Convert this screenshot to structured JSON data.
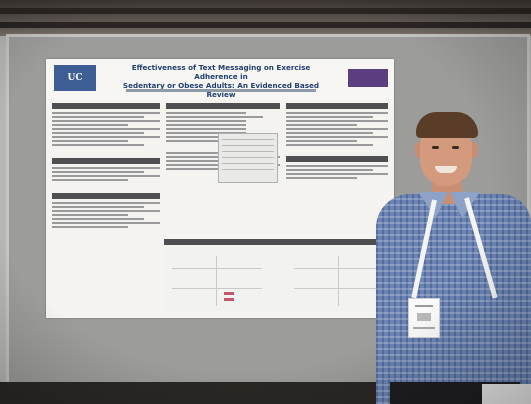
{
  "photo": {
    "subject": "person-presenting-poster",
    "colors": {
      "board": "#9c9d9a",
      "poster": "#f4f3ef",
      "poster_title": "#1f3f73",
      "shirt": "#6b84b3",
      "section_header": "#4f4f52"
    }
  },
  "poster": {
    "logo_text": "UC",
    "title_line1": "Effectiveness of Text Messaging on Exercise Adherence in",
    "title_line2": "Sedentary or Obese Adults: An Evidenced Based Review"
  }
}
